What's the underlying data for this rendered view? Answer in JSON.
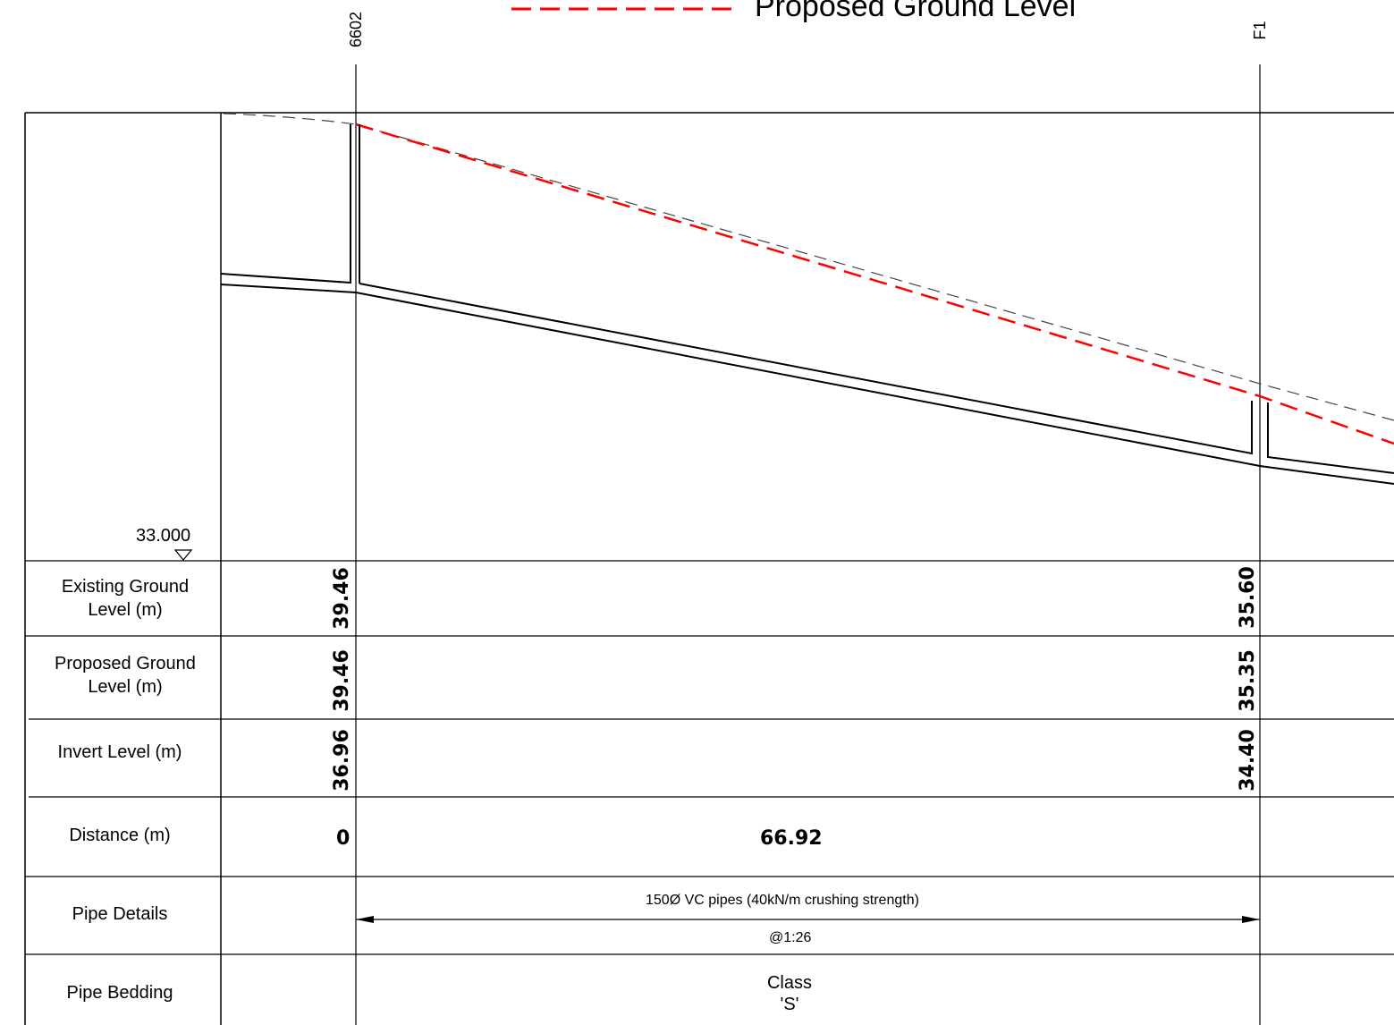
{
  "legend": {
    "proposed_label": "Proposed Ground Level",
    "proposed_color": "#ff0000"
  },
  "manholes": [
    {
      "id": "6602"
    },
    {
      "id": "F1"
    }
  ],
  "datum": {
    "value": "33.000"
  },
  "rows": {
    "existing_ground": {
      "label": "Existing Ground\nLevel (m)",
      "values": [
        "39.46",
        "35.60"
      ]
    },
    "proposed_ground": {
      "label": "Proposed Ground\nLevel (m)",
      "values": [
        "39.46",
        "35.35"
      ]
    },
    "invert_level": {
      "label": "Invert Level (m)",
      "values": [
        "36.96",
        "34.40"
      ]
    },
    "distance": {
      "label": "Distance (m)",
      "start": "0",
      "segment": "66.92"
    },
    "pipe_details": {
      "label": "Pipe Details",
      "description": "150Ø VC pipes (40kN/m crushing strength)",
      "gradient": "@1:26"
    },
    "pipe_bedding": {
      "label": "Pipe Bedding",
      "value": "Class\n'S'"
    }
  }
}
